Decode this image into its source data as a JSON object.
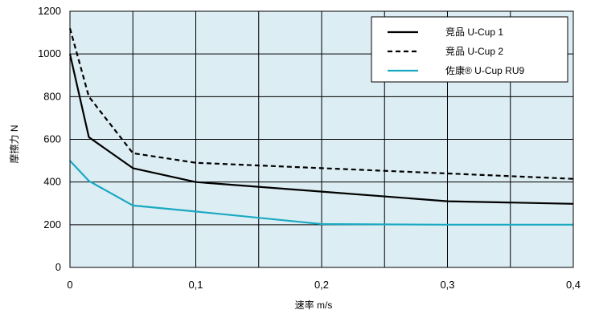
{
  "chart_data": {
    "type": "line",
    "title": "",
    "xlabel": "速率 m/s",
    "ylabel": "摩擦力 N",
    "xlim": [
      0,
      0.4
    ],
    "ylim": [
      0,
      1200
    ],
    "x_ticks": [
      0,
      0.1,
      0.2,
      0.3,
      0.4
    ],
    "x_tick_labels": [
      "0",
      "0,1",
      "0,2",
      "0,3",
      "0,4"
    ],
    "y_ticks": [
      0,
      200,
      400,
      600,
      800,
      1000,
      1200
    ],
    "y_tick_labels": [
      "0",
      "200",
      "400",
      "600",
      "800",
      "1000",
      "1200"
    ],
    "grid": true,
    "background_color": "#dcedf3",
    "legend_position": "top-right",
    "series": [
      {
        "name": "竞品 U-Cup 1",
        "color": "#000000",
        "style": "solid",
        "x": [
          0,
          0.015,
          0.05,
          0.1,
          0.2,
          0.3,
          0.4
        ],
        "y": [
          1000,
          610,
          465,
          400,
          355,
          310,
          298
        ]
      },
      {
        "name": "竞品 U-Cup 2",
        "color": "#000000",
        "style": "dashed",
        "x": [
          0,
          0.015,
          0.05,
          0.1,
          0.2,
          0.3,
          0.4
        ],
        "y": [
          1120,
          800,
          535,
          490,
          465,
          440,
          415
        ]
      },
      {
        "name": "佐康® U-Cup RU9",
        "color": "#1aa9c2",
        "style": "solid",
        "x": [
          0,
          0.015,
          0.05,
          0.1,
          0.2,
          0.3,
          0.4
        ],
        "y": [
          500,
          405,
          290,
          262,
          203,
          200,
          200
        ]
      }
    ]
  }
}
